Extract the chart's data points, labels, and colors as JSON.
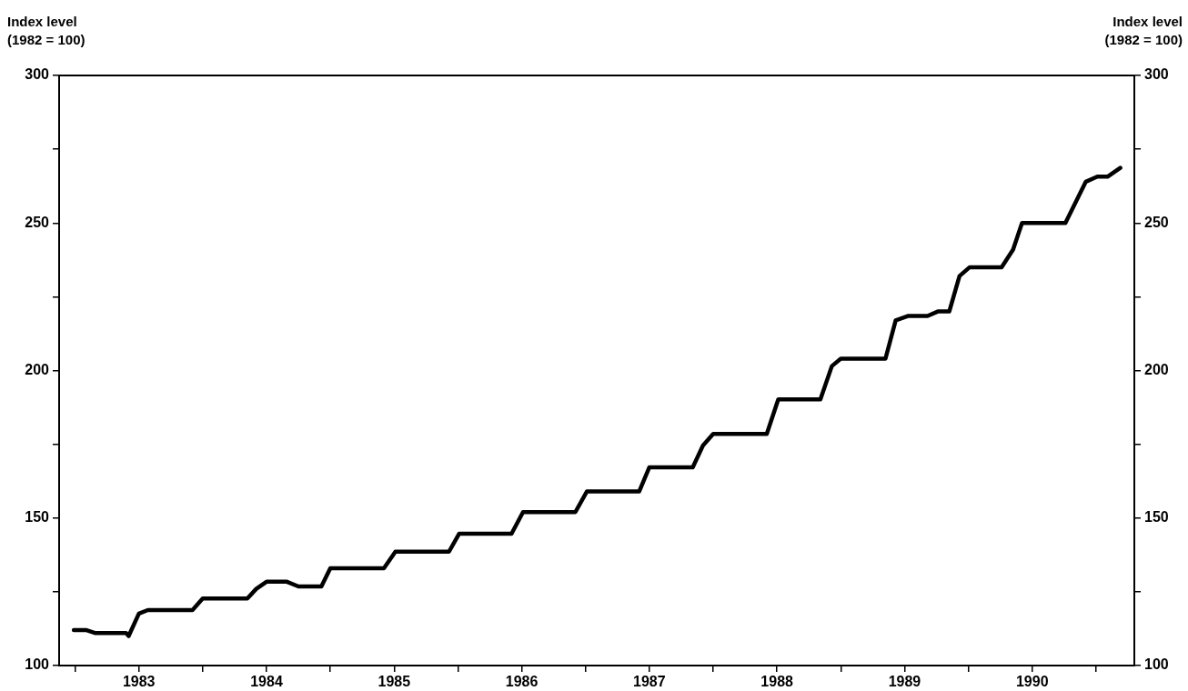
{
  "chart_data": {
    "type": "line",
    "ylabel": "Index level (1982 = 100)",
    "y2label": "Index level (1982 = 100)",
    "xlim": [
      1982.375,
      1990.8
    ],
    "xticks": [
      {
        "value": 1982.5,
        "label": null
      },
      1983,
      {
        "value": 1983.5,
        "label": null
      },
      1984,
      {
        "value": 1984.5,
        "label": null
      },
      1985,
      {
        "value": 1985.5,
        "label": null
      },
      1986,
      {
        "value": 1986.5,
        "label": null
      },
      1987,
      {
        "value": 1987.5,
        "label": null
      },
      1988,
      {
        "value": 1988.5,
        "label": null
      },
      1989,
      {
        "value": 1989.5,
        "label": null
      },
      1990,
      {
        "value": 1990.5,
        "label": null
      }
    ],
    "ylim": [
      100,
      300
    ],
    "yticks": [
      100,
      {
        "value": 125,
        "label": null
      },
      150,
      {
        "value": 175,
        "label": null
      },
      200,
      {
        "value": 225,
        "label": null
      },
      250,
      {
        "value": 275,
        "label": null
      },
      300
    ],
    "y2lim": [
      100,
      300
    ],
    "y2ticks": [
      100,
      {
        "value": 125,
        "label": null
      },
      150,
      {
        "value": 175,
        "label": null
      },
      200,
      {
        "value": 225,
        "label": null
      },
      250,
      {
        "value": 275,
        "label": null
      },
      300
    ],
    "grid": false,
    "legend": false,
    "marker": "none",
    "line_style": "solid",
    "series": [
      {
        "color": "#000000",
        "x": [
          1982.49,
          1982.59,
          1982.66,
          1982.9,
          1982.92,
          1983.0,
          1983.07,
          1983.42,
          1983.5,
          1983.85,
          1983.92,
          1984.0,
          1984.16,
          1984.25,
          1984.43,
          1984.5,
          1984.92,
          1985.01,
          1985.43,
          1985.51,
          1985.92,
          1986.01,
          1986.42,
          1986.51,
          1986.92,
          1987.0,
          1987.34,
          1987.42,
          1987.5,
          1987.92,
          1988.01,
          1988.34,
          1988.43,
          1988.5,
          1988.85,
          1988.93,
          1989.03,
          1989.18,
          1989.26,
          1989.35,
          1989.43,
          1989.51,
          1989.76,
          1989.85,
          1989.92,
          1990.26,
          1990.42,
          1990.51,
          1990.59,
          1990.69
        ],
        "values": [
          112,
          112,
          111,
          111,
          110,
          117.6,
          118.8,
          118.8,
          122.7,
          122.7,
          126,
          128.4,
          128.4,
          126.8,
          126.8,
          133,
          133,
          138.6,
          138.6,
          144.7,
          144.7,
          152,
          152,
          159,
          159,
          167.2,
          167.2,
          174.6,
          178.5,
          178.5,
          190.2,
          190.2,
          201.5,
          204,
          204,
          217,
          218.5,
          218.5,
          220,
          220,
          232,
          235,
          235,
          241,
          250,
          250,
          264,
          265.7,
          265.7,
          268.7
        ]
      }
    ]
  }
}
